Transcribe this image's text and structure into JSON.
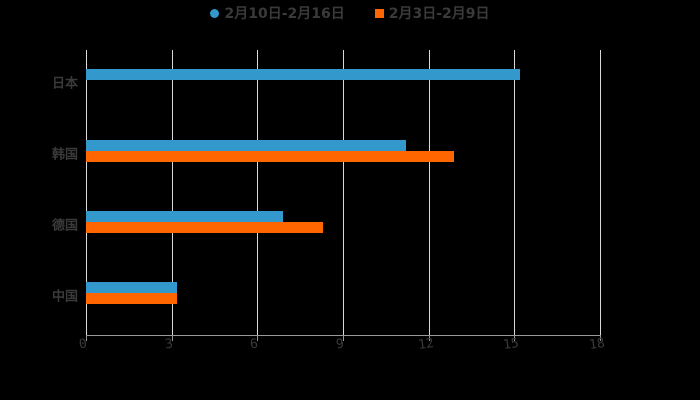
{
  "legend": [
    {
      "label": "2月10日-2月16日",
      "color": "#3399cc",
      "marker": "circle"
    },
    {
      "label": "2月3日-2月9日",
      "color": "#ff6600",
      "marker": "square"
    }
  ],
  "chart_data": {
    "type": "bar",
    "orientation": "horizontal",
    "title": "",
    "xlabel": "",
    "ylabel": "",
    "categories": [
      "日本",
      "韩国",
      "德国",
      "中国"
    ],
    "series": [
      {
        "name": "2月10日-2月16日",
        "color": "#3399cc",
        "values": [
          15.2,
          11.2,
          6.9,
          3.2
        ]
      },
      {
        "name": "2月3日-2月9日",
        "color": "#ff6600",
        "values": [
          null,
          12.9,
          8.3,
          3.2
        ]
      }
    ],
    "xlim": [
      0,
      18
    ],
    "xticks": [
      "0",
      "3",
      "6",
      "9",
      "12",
      "15",
      "18"
    ],
    "grid": true,
    "legend_position": "top"
  }
}
